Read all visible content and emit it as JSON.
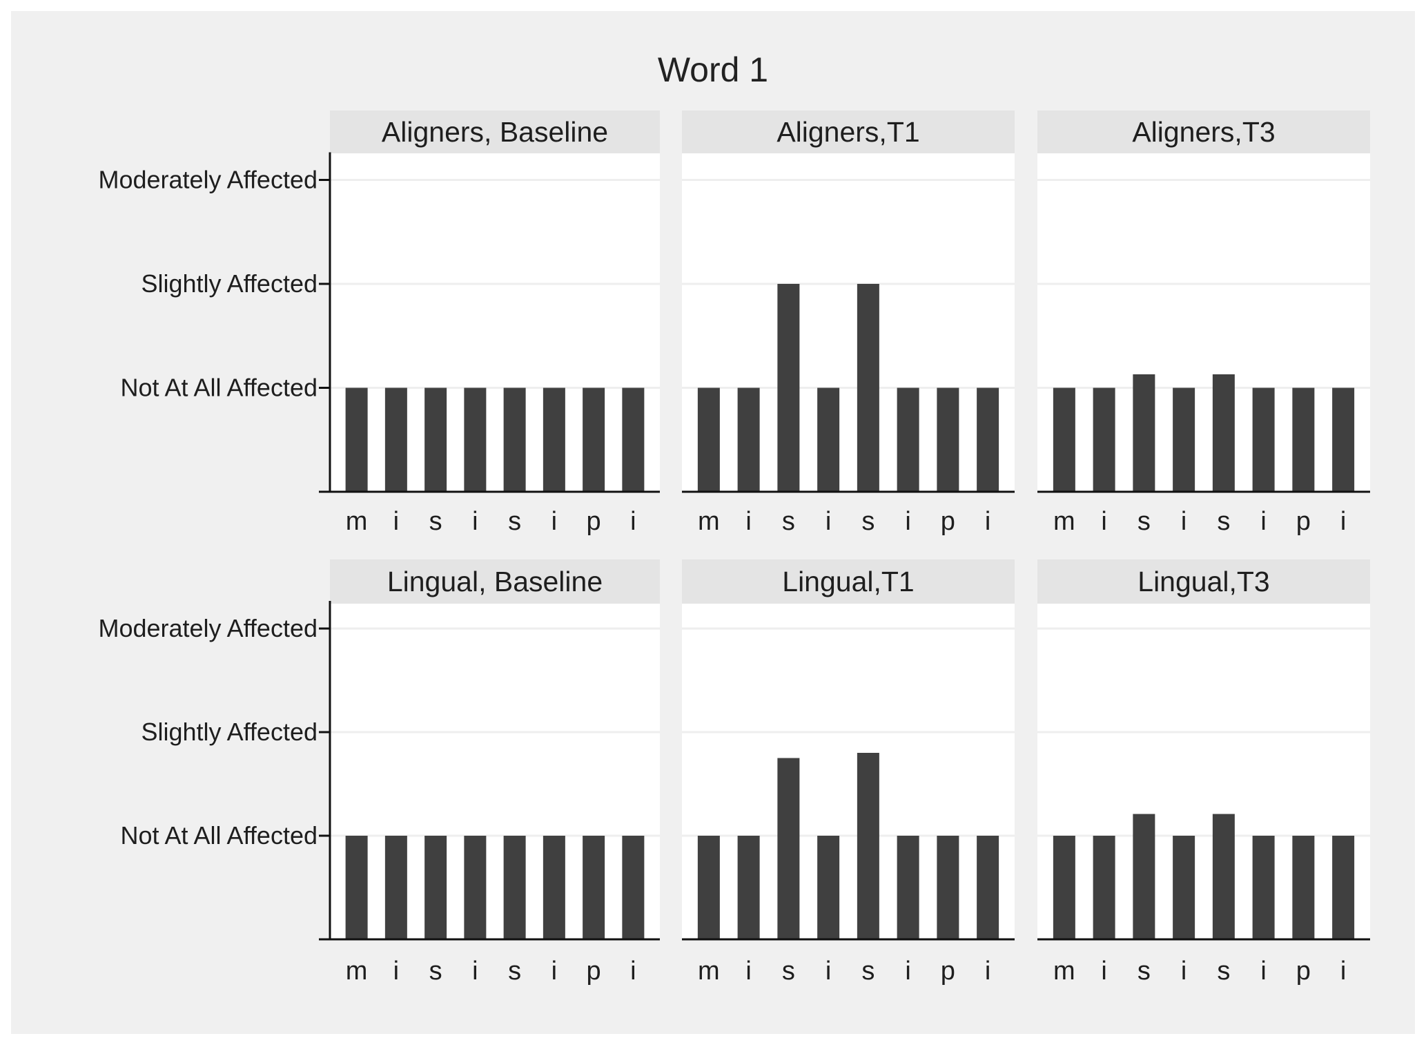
{
  "chart_data": {
    "type": "bar",
    "title": "Word 1",
    "y_levels": [
      "Not At All Affected",
      "Slightly Affected",
      "Moderately Affected"
    ],
    "categories": [
      "m",
      "i",
      "s",
      "i",
      "s",
      "i",
      "p",
      "i"
    ],
    "ylim": [
      0,
      3
    ],
    "grid": true,
    "layout": "2 rows x 3 columns",
    "colors": {
      "bar": "#404040",
      "figure_bg": "#f0f0f0",
      "panel_bg": "#ffffff",
      "strip_bg": "#e4e4e4",
      "grid": "#eeeeee"
    },
    "panels": [
      {
        "title": "Aligners, Baseline",
        "values": [
          1,
          1,
          1,
          1,
          1,
          1,
          1,
          1
        ]
      },
      {
        "title": "Aligners,T1",
        "values": [
          1,
          1,
          2,
          1,
          2,
          1,
          1,
          1
        ]
      },
      {
        "title": "Aligners,T3",
        "values": [
          1,
          1,
          1.13,
          1,
          1.13,
          1,
          1,
          1
        ]
      },
      {
        "title": "Lingual, Baseline",
        "values": [
          1,
          1,
          1,
          1,
          1,
          1,
          1,
          1
        ]
      },
      {
        "title": "Lingual,T1",
        "values": [
          1,
          1,
          1.75,
          1,
          1.8,
          1,
          1,
          1
        ]
      },
      {
        "title": "Lingual,T3",
        "values": [
          1,
          1,
          1.21,
          1,
          1.21,
          1,
          1,
          1
        ]
      }
    ]
  }
}
